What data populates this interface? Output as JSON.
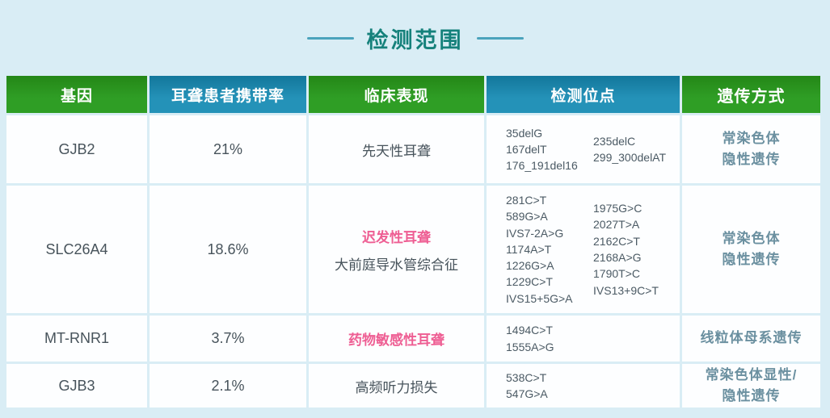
{
  "palette": {
    "page_background": "#d9edf5",
    "header_green": "#2c9724",
    "header_blue": "#1d86ab",
    "cell_background": "#fdfeff",
    "title_color": "#15817b",
    "dash_color": "#4ba3bc",
    "body_text": "#47535b",
    "sites_text": "#4b5a64",
    "highlight_pink": "#ee5e93",
    "inheritance_text": "#6b90a0"
  },
  "title": "检测范围",
  "table": {
    "headers": [
      {
        "label": "基因",
        "style": "green"
      },
      {
        "label": "耳聋患者携带率",
        "style": "blue"
      },
      {
        "label": "临床表现",
        "style": "green"
      },
      {
        "label": "检测位点",
        "style": "blue"
      },
      {
        "label": "遗传方式",
        "style": "green"
      }
    ],
    "rows": [
      {
        "gene": "GJB2",
        "carrier_rate": "21%",
        "clinical_highlight": "",
        "clinical_normal": "先天性耳聋",
        "sites_col1": "35delG\n167delT\n176_191del16",
        "sites_col2": "235delC\n299_300delAT",
        "inheritance": "常染色体\n隐性遗传"
      },
      {
        "gene": "SLC26A4",
        "carrier_rate": "18.6%",
        "clinical_highlight": "迟发性耳聋",
        "clinical_normal": "大前庭导水管综合征",
        "sites_col1": "281C>T\n589G>A\nIVS7-2A>G\n1174A>T\n1226G>A\n1229C>T\nIVS15+5G>A",
        "sites_col2": "1975G>C\n2027T>A\n2162C>T\n2168A>G\n1790T>C\nIVS13+9C>T",
        "inheritance": "常染色体\n隐性遗传"
      },
      {
        "gene": "MT-RNR1",
        "carrier_rate": "3.7%",
        "clinical_highlight": "药物敏感性耳聋",
        "clinical_normal": "",
        "sites_col1": "1494C>T\n1555A>G",
        "sites_col2": "",
        "inheritance": "线粒体母系遗传"
      },
      {
        "gene": "GJB3",
        "carrier_rate": "2.1%",
        "clinical_highlight": "",
        "clinical_normal": "高频听力损失",
        "sites_col1": "538C>T\n547G>A",
        "sites_col2": "",
        "inheritance": "常染色体显性/\n隐性遗传"
      }
    ]
  }
}
